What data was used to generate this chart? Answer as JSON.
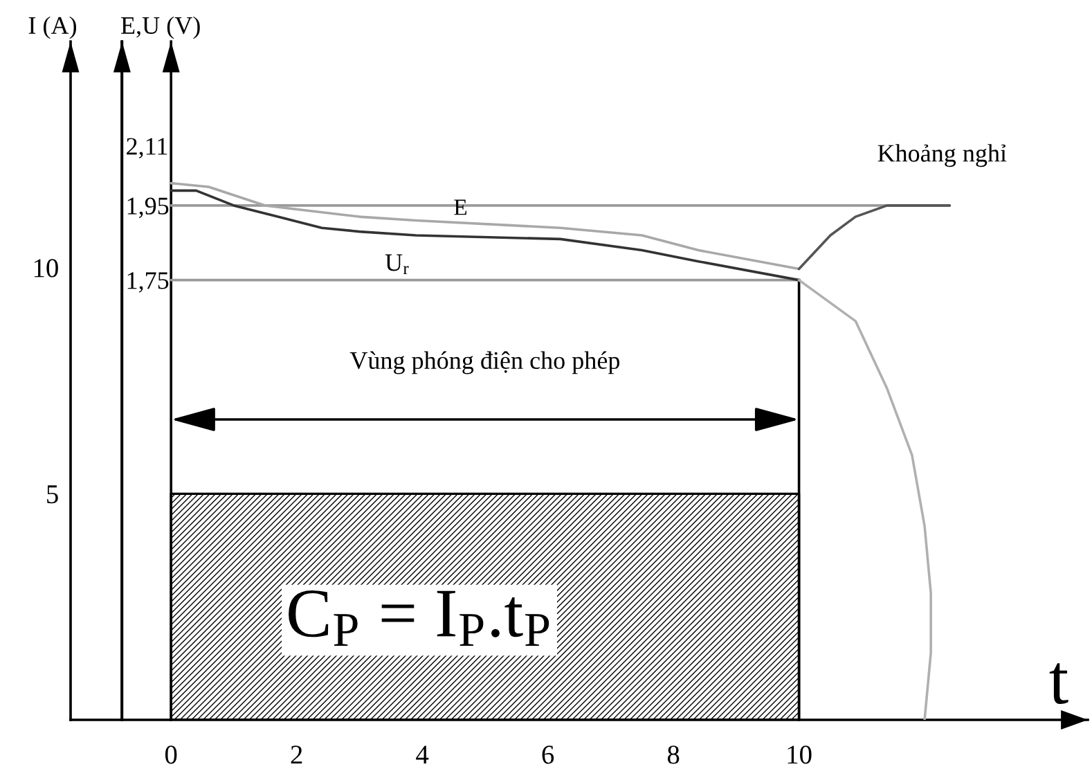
{
  "chart_data": {
    "type": "line",
    "xlabel": "t",
    "ylabel": "I (A)",
    "y2label": "E,U (V)",
    "xlim": [
      -1.6,
      14.6
    ],
    "xticks": [
      0,
      2,
      4,
      6,
      8,
      10
    ],
    "ylim": [
      0,
      15
    ],
    "yticks": [
      5,
      10
    ],
    "y2lim": [
      0.57,
      2.39
    ],
    "y2ticks": [
      {
        "value": 2.11,
        "label": "2,11"
      },
      {
        "value": 1.95,
        "label": "1,95"
      },
      {
        "value": 1.75,
        "label": "1,75"
      }
    ],
    "series": [
      {
        "type": "area",
        "color": "#000000",
        "x": [
          0,
          10
        ],
        "values": [
          5,
          5
        ]
      },
      {
        "axis": "y2",
        "color": "#9a9a9a",
        "x": [
          0,
          12.4
        ],
        "values": [
          1.95,
          1.95
        ]
      },
      {
        "axis": "y2",
        "color": "#9a9a9a",
        "x": [
          0,
          10
        ],
        "values": [
          1.75,
          1.75
        ]
      },
      {
        "name": "E",
        "axis": "y2",
        "color": "#a8a8a8",
        "x": [
          0,
          0.6,
          1.5,
          3,
          3.9,
          6.2,
          7.5,
          8.4,
          10
        ],
        "values": [
          2.01,
          2.0,
          1.95,
          1.92,
          1.91,
          1.89,
          1.87,
          1.83,
          1.78
        ]
      },
      {
        "name": "U$_{r}$",
        "axis": "y2",
        "color": "#333333",
        "x": [
          0,
          0.4,
          1,
          1.7,
          2.4,
          3,
          3.9,
          6.2,
          7.5,
          8.4,
          10
        ],
        "values": [
          1.99,
          1.99,
          1.95,
          1.92,
          1.89,
          1.88,
          1.87,
          1.86,
          1.83,
          1.8,
          1.75
        ]
      },
      {
        "name": "Khoảng nghỉ",
        "axis": "y2",
        "color": "#555555",
        "x": [
          10,
          10.5,
          10.9,
          11.4,
          12.4
        ],
        "values": [
          1.78,
          1.87,
          1.92,
          1.95,
          1.95
        ]
      },
      {
        "axis": "y2",
        "color": "#b0b0b0",
        "x": [
          10,
          10.9,
          11.4,
          11.8,
          12.0,
          12.1,
          12.1,
          12.0
        ],
        "values": [
          1.75,
          1.64,
          1.46,
          1.28,
          1.09,
          0.91,
          0.75,
          0.57
        ]
      }
    ],
    "ref_lines": [
      {
        "axis": "x",
        "value": -0.78,
        "color": "#000000"
      },
      {
        "axis": "x",
        "value": 0,
        "color": "#000000"
      },
      {
        "axis": "x",
        "value": 10,
        "color": "#000000"
      }
    ],
    "annotations": [
      "Vùng phóng điện cho phép",
      "C$_{P}$ = I$_{P}$.t$_{P}$"
    ]
  }
}
